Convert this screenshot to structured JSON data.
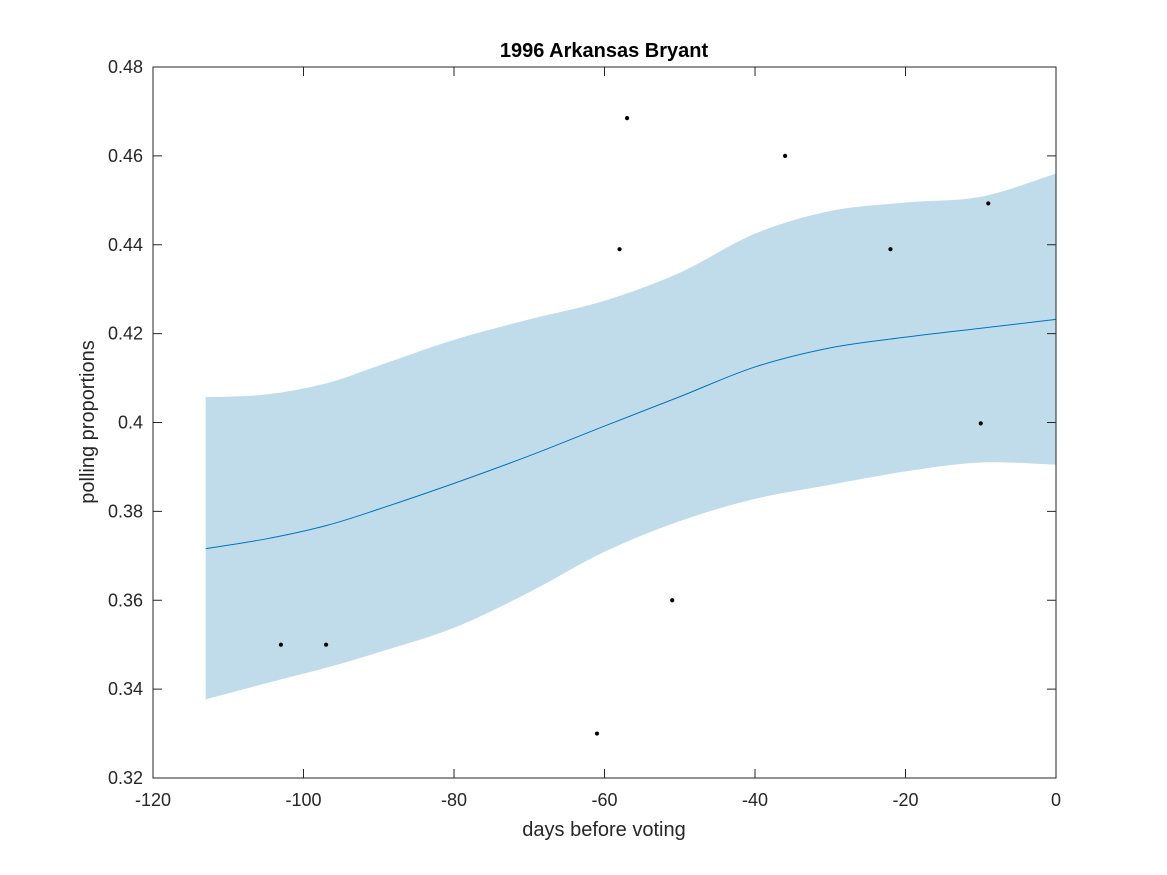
{
  "chart_data": {
    "type": "line",
    "title": "1996 Arkansas Bryant",
    "xlabel": "days before voting",
    "ylabel": "polling proportions",
    "xlim": [
      -120,
      0
    ],
    "ylim": [
      0.32,
      0.48
    ],
    "x_ticks": [
      -120,
      -100,
      -80,
      -60,
      -40,
      -20,
      0
    ],
    "x_tick_labels": [
      "-120",
      "-100",
      "-80",
      "-60",
      "-40",
      "-20",
      "0"
    ],
    "y_ticks": [
      0.32,
      0.34,
      0.36,
      0.38,
      0.4,
      0.42,
      0.44,
      0.46,
      0.48
    ],
    "y_tick_labels": [
      "0.32",
      "0.34",
      "0.36",
      "0.38",
      "0.4",
      "0.42",
      "0.44",
      "0.46",
      "0.48"
    ],
    "grid": false,
    "legend": "none",
    "colors": {
      "trend_line": "#0072BD",
      "band_fill": "#c0dceb",
      "points": "#000000",
      "axes": "#262626"
    },
    "trend": {
      "x": [
        -113,
        -105,
        -97,
        -90,
        -80,
        -70,
        -60,
        -50,
        -40,
        -30,
        -20,
        -10,
        0
      ],
      "mean": [
        0.3716,
        0.3738,
        0.3768,
        0.3805,
        0.3863,
        0.3925,
        0.3992,
        0.4058,
        0.4125,
        0.4168,
        0.4192,
        0.4212,
        0.4232
      ],
      "upper": [
        0.4057,
        0.4063,
        0.4088,
        0.4128,
        0.4186,
        0.4232,
        0.4274,
        0.4337,
        0.4425,
        0.4476,
        0.4495,
        0.4508,
        0.456
      ],
      "lower": [
        0.3377,
        0.3413,
        0.3448,
        0.3483,
        0.3538,
        0.3618,
        0.3709,
        0.3778,
        0.3828,
        0.386,
        0.389,
        0.391,
        0.3905
      ]
    },
    "points": [
      {
        "x": -103,
        "y": 0.35
      },
      {
        "x": -97,
        "y": 0.35
      },
      {
        "x": -61,
        "y": 0.33
      },
      {
        "x": -58,
        "y": 0.439
      },
      {
        "x": -57,
        "y": 0.4685
      },
      {
        "x": -51,
        "y": 0.36
      },
      {
        "x": -36,
        "y": 0.46
      },
      {
        "x": -22,
        "y": 0.439
      },
      {
        "x": -10,
        "y": 0.3998
      },
      {
        "x": -9,
        "y": 0.4493
      }
    ]
  }
}
